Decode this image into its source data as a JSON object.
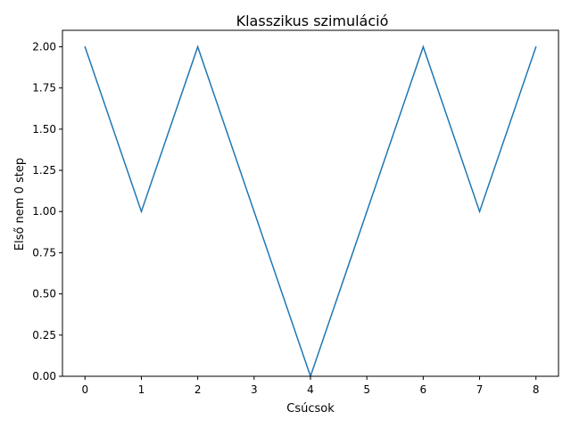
{
  "chart_data": {
    "type": "line",
    "title": "Klasszikus szimuláció",
    "xlabel": "Csúcsok",
    "ylabel": "Első nem 0 step",
    "x": [
      0,
      1,
      2,
      3,
      4,
      5,
      6,
      7,
      8
    ],
    "series": [
      {
        "values": [
          2,
          1,
          2,
          1,
          0,
          1,
          2,
          1,
          2
        ],
        "color": "#1f77b4"
      }
    ],
    "xlim": [
      -0.4,
      8.4
    ],
    "ylim": [
      0,
      2.1
    ],
    "xticks": [
      0,
      1,
      2,
      3,
      4,
      5,
      6,
      7,
      8
    ],
    "xtick_labels": [
      "0",
      "1",
      "2",
      "3",
      "4",
      "5",
      "6",
      "7",
      "8"
    ],
    "yticks": [
      0,
      0.25,
      0.5,
      0.75,
      1.0,
      1.25,
      1.5,
      1.75,
      2.0
    ],
    "ytick_labels": [
      "0.00",
      "0.25",
      "0.50",
      "0.75",
      "1.00",
      "1.25",
      "1.50",
      "1.75",
      "2.00"
    ],
    "grid": false,
    "legend": false
  }
}
